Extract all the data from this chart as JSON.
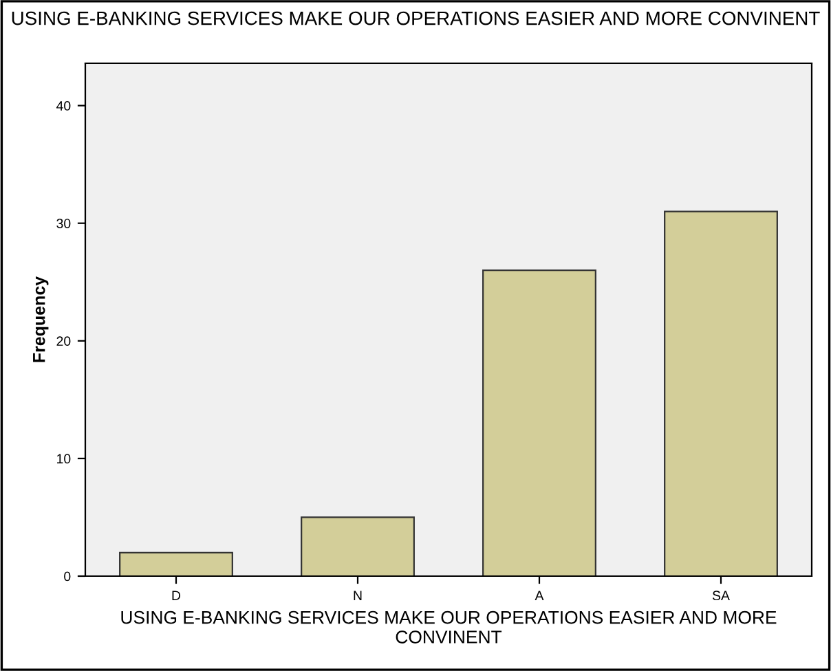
{
  "chart_data": {
    "type": "bar",
    "title": "USING E-BANKING SERVICES MAKE OUR OPERATIONS EASIER AND MORE CONVINENT",
    "xlabel": "USING E-BANKING SERVICES MAKE OUR OPERATIONS EASIER AND MORE CONVINENT",
    "ylabel": "Frequency",
    "categories": [
      "D",
      "N",
      "A",
      "SA"
    ],
    "values": [
      2,
      5,
      26,
      31
    ],
    "color": "#d3ce99",
    "ylim": [
      0,
      43.6
    ],
    "yticks": [
      0,
      10,
      20,
      30,
      40
    ],
    "grid": false,
    "legend": false
  }
}
